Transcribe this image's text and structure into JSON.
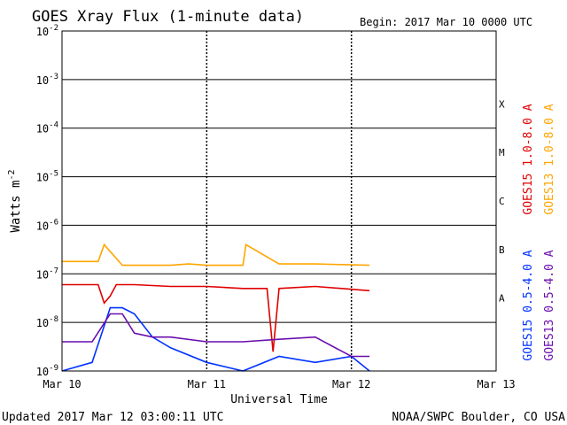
{
  "header": {
    "title": "GOES Xray Flux (1-minute data)",
    "begin": "Begin:  2017 Mar 10 0000 UTC"
  },
  "footer": {
    "updated": "Updated 2017 Mar 12 03:00:11 UTC",
    "credit": "NOAA/SWPC Boulder, CO USA"
  },
  "colors": {
    "goes15_long": "#e00000",
    "goes13_long": "#ffa500",
    "goes15_short": "#0033ff",
    "goes13_short": "#6a0dad"
  },
  "chart_data": {
    "type": "line",
    "xlabel": "Universal Time",
    "ylabel_base": "Watts m",
    "ylabel_exp": "-2",
    "xlim": [
      "2017-03-10",
      "2017-03-13"
    ],
    "ylim": [
      1e-09,
      0.01
    ],
    "y_scale": "log",
    "grid": true,
    "x_ticks": [
      "Mar 10",
      "Mar 11",
      "Mar 12",
      "Mar 13"
    ],
    "y_ticks": [
      {
        "base": "10",
        "exp": "-9"
      },
      {
        "base": "10",
        "exp": "-8"
      },
      {
        "base": "10",
        "exp": "-7"
      },
      {
        "base": "10",
        "exp": "-6"
      },
      {
        "base": "10",
        "exp": "-5"
      },
      {
        "base": "10",
        "exp": "-4"
      },
      {
        "base": "10",
        "exp": "-3"
      },
      {
        "base": "10",
        "exp": "-2"
      }
    ],
    "flare_classes": [
      "A",
      "B",
      "C",
      "M",
      "X"
    ],
    "legend_placement": "right",
    "series": [
      {
        "name": "GOES15 1.0-8.0 A",
        "color": "#e00000",
        "x": [
          "2017-03-10 00:00",
          "2017-03-10 06:00",
          "2017-03-10 07:00",
          "2017-03-10 08:00",
          "2017-03-10 09:00",
          "2017-03-10 12:00",
          "2017-03-10 18:00",
          "2017-03-11 00:00",
          "2017-03-11 06:00",
          "2017-03-11 10:00",
          "2017-03-11 11:00",
          "2017-03-11 12:00",
          "2017-03-11 18:00",
          "2017-03-12 03:00"
        ],
        "values": [
          6e-08,
          6e-08,
          2.5e-08,
          3.5e-08,
          6e-08,
          6e-08,
          5.5e-08,
          5.5e-08,
          5e-08,
          5e-08,
          2.5e-09,
          5e-08,
          5.5e-08,
          4.5e-08
        ]
      },
      {
        "name": "GOES13 1.0-8.0 A",
        "color": "#ffa500",
        "x": [
          "2017-03-10 00:00",
          "2017-03-10 06:00",
          "2017-03-10 07:00",
          "2017-03-10 10:00",
          "2017-03-10 18:00",
          "2017-03-10 21:00",
          "2017-03-11 00:00",
          "2017-03-11 06:00",
          "2017-03-11 06:30",
          "2017-03-11 12:00",
          "2017-03-11 18:00",
          "2017-03-12 03:00"
        ],
        "values": [
          1.8e-07,
          1.8e-07,
          4e-07,
          1.5e-07,
          1.5e-07,
          1.6e-07,
          1.5e-07,
          1.5e-07,
          4e-07,
          1.6e-07,
          1.6e-07,
          1.5e-07
        ]
      },
      {
        "name": "GOES15 0.5-4.0 A",
        "color": "#0033ff",
        "x": [
          "2017-03-10 00:00",
          "2017-03-10 05:00",
          "2017-03-10 08:00",
          "2017-03-10 10:00",
          "2017-03-10 12:00",
          "2017-03-10 15:00",
          "2017-03-10 18:00",
          "2017-03-11 00:00",
          "2017-03-11 06:00",
          "2017-03-11 12:00",
          "2017-03-11 18:00",
          "2017-03-12 00:00",
          "2017-03-12 03:00"
        ],
        "values": [
          1e-09,
          1.5e-09,
          2e-08,
          2e-08,
          1.5e-08,
          5e-09,
          3e-09,
          1.5e-09,
          1e-09,
          2e-09,
          1.5e-09,
          2e-09,
          1e-09
        ]
      },
      {
        "name": "GOES13 0.5-4.0 A",
        "color": "#6a0dad",
        "x": [
          "2017-03-10 00:00",
          "2017-03-10 05:00",
          "2017-03-10 08:00",
          "2017-03-10 10:00",
          "2017-03-10 12:00",
          "2017-03-10 15:00",
          "2017-03-10 18:00",
          "2017-03-11 00:00",
          "2017-03-11 06:00",
          "2017-03-11 12:00",
          "2017-03-11 18:00",
          "2017-03-12 00:00",
          "2017-03-12 03:00"
        ],
        "values": [
          4e-09,
          4e-09,
          1.5e-08,
          1.5e-08,
          6e-09,
          5e-09,
          5e-09,
          4e-09,
          4e-09,
          4.5e-09,
          5e-09,
          2e-09,
          2e-09
        ]
      }
    ]
  }
}
